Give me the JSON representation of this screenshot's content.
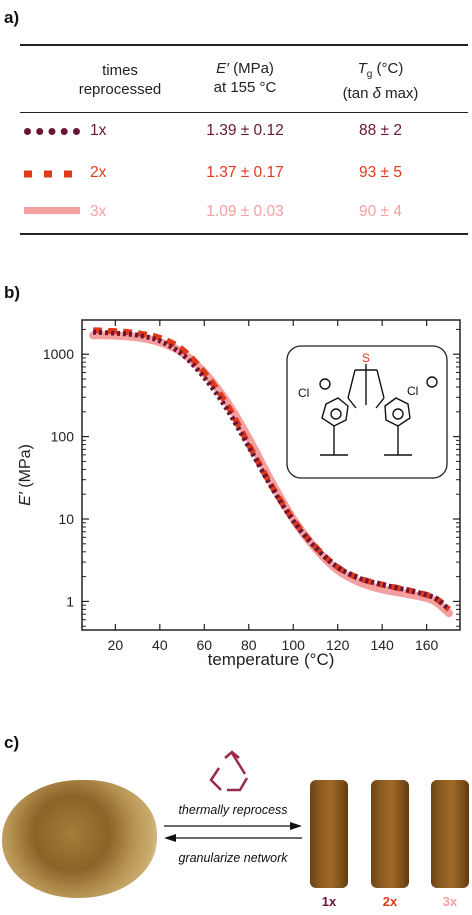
{
  "panel_labels": {
    "a": "a)",
    "b": "b)",
    "c": "c)"
  },
  "colors": {
    "r1": "#6b1536",
    "r2": "#e03a1c",
    "r3": "#f4a0a0"
  },
  "table": {
    "headers": {
      "col1": [
        "times",
        "reprocessed"
      ],
      "col2_line1_var": "E′",
      "col2_line1_unit": " (MPa)",
      "col2_line2": "at 155 °C",
      "col3_line1_var": "T",
      "col3_line1_sub": "g",
      "col3_line1_unit": " (°C)",
      "col3_line2_pre": "(tan ",
      "col3_line2_delta": "δ",
      "col3_line2_post": " max)"
    },
    "rows": [
      {
        "label": "1x",
        "modulus": "1.39 ± 0.12",
        "tg": "88 ± 2",
        "color": "#6b1536",
        "line_style": "dotted"
      },
      {
        "label": "2x",
        "modulus": "1.37 ± 0.17",
        "tg": "93 ± 5",
        "color": "#e03a1c",
        "line_style": "dashed"
      },
      {
        "label": "3x",
        "modulus": "1.09 ± 0.03",
        "tg": "90 ± 4",
        "color": "#f4a0a0",
        "line_style": "solid"
      }
    ]
  },
  "chart_data": {
    "type": "line",
    "xlabel": "temperature (°C)",
    "ylabel_var": "E′",
    "ylabel_unit": " (MPa)",
    "xlim": [
      5,
      175
    ],
    "ylim": [
      0.45,
      2600
    ],
    "yscale": "log",
    "xticks": [
      20,
      40,
      60,
      80,
      100,
      120,
      140,
      160
    ],
    "yticks": [
      1,
      10,
      100,
      1000
    ],
    "ytick_labels": [
      "1",
      "10",
      "100",
      "1000"
    ],
    "series": [
      {
        "name": "1x",
        "color": "#6b1536",
        "style": "dotted",
        "x": [
          10,
          20,
          30,
          40,
          50,
          60,
          70,
          80,
          90,
          100,
          110,
          120,
          130,
          140,
          150,
          160,
          165,
          170
        ],
        "y": [
          1850,
          1800,
          1700,
          1450,
          1000,
          520,
          220,
          75,
          25,
          9.5,
          4.5,
          2.6,
          1.9,
          1.6,
          1.4,
          1.2,
          1.05,
          0.8
        ]
      },
      {
        "name": "2x",
        "color": "#e03a1c",
        "style": "dashed",
        "x": [
          10,
          20,
          30,
          40,
          50,
          60,
          70,
          80,
          90,
          100,
          110,
          120,
          130,
          140,
          150,
          160,
          165,
          170
        ],
        "y": [
          1950,
          1900,
          1800,
          1580,
          1150,
          600,
          250,
          80,
          26,
          9.8,
          4.6,
          2.6,
          1.9,
          1.6,
          1.4,
          1.2,
          1.05,
          0.8
        ]
      },
      {
        "name": "3x",
        "color": "#f4a0a0",
        "style": "solid",
        "x": [
          10,
          20,
          30,
          40,
          50,
          60,
          70,
          80,
          90,
          100,
          110,
          120,
          130,
          140,
          150,
          160,
          165,
          170
        ],
        "y": [
          1700,
          1680,
          1600,
          1400,
          1050,
          600,
          270,
          95,
          29,
          10,
          4.4,
          2.4,
          1.7,
          1.4,
          1.25,
          1.1,
          0.95,
          0.72
        ]
      }
    ]
  },
  "molecule": {
    "s_label": "S",
    "cl_label": "Cl"
  },
  "process": {
    "forward_label": "thermally reprocess",
    "reverse_label": "granularize network",
    "samples": [
      {
        "label": "1x",
        "color": "#6b1536"
      },
      {
        "label": "2x",
        "color": "#e03a1c"
      },
      {
        "label": "3x",
        "color": "#f4a0a0"
      }
    ]
  }
}
